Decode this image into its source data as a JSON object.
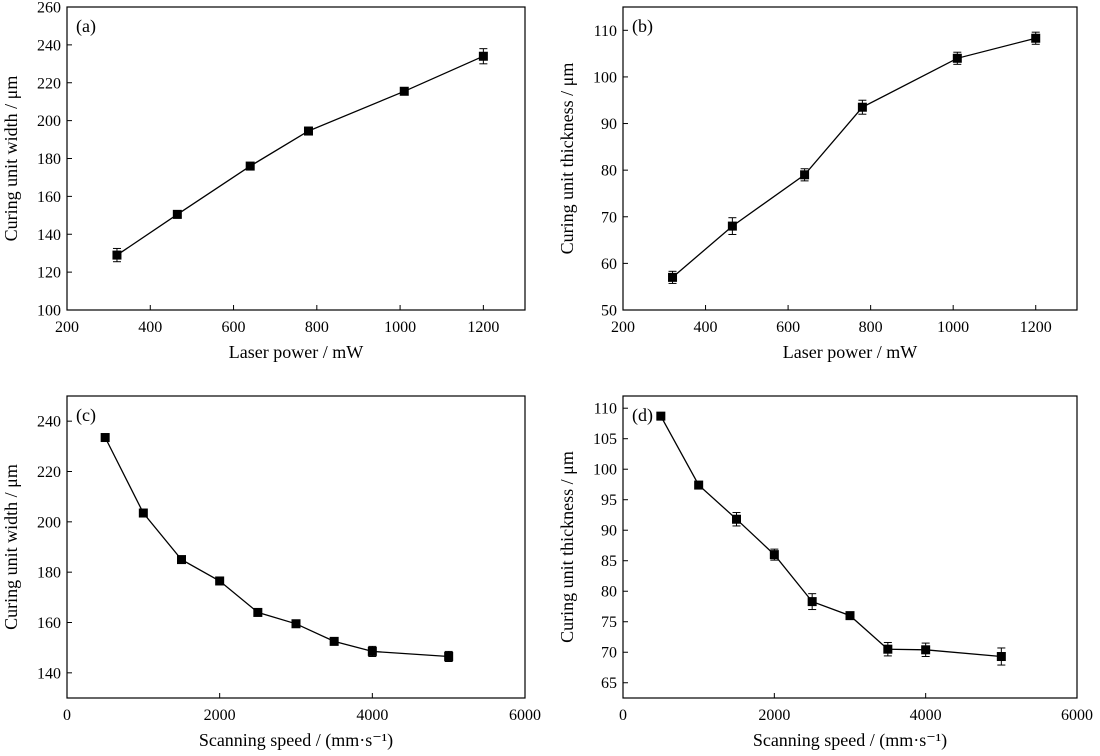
{
  "chart_data": [
    {
      "id": "a",
      "type": "line",
      "panel_label": "(a)",
      "xlabel": "Laser power / mW",
      "ylabel": "Curing unit width / μm",
      "xlim": [
        200,
        1300
      ],
      "ylim": [
        100,
        260
      ],
      "xticks": [
        200,
        400,
        600,
        800,
        1000,
        1200
      ],
      "yticks": [
        100,
        120,
        140,
        160,
        180,
        200,
        220,
        240,
        260
      ],
      "grid": false,
      "series": [
        {
          "x": [
            320,
            465,
            640,
            780,
            1010,
            1200
          ],
          "y": [
            129,
            150.5,
            176,
            194.5,
            215.5,
            234
          ],
          "err": [
            3.5,
            2,
            1.5,
            2,
            1.5,
            4
          ]
        }
      ]
    },
    {
      "id": "b",
      "type": "line",
      "panel_label": "(b)",
      "xlabel": "Laser power / mW",
      "ylabel": "Curing unit thickness / μm",
      "xlim": [
        200,
        1300
      ],
      "ylim": [
        50,
        115
      ],
      "xticks": [
        200,
        400,
        600,
        800,
        1000,
        1200
      ],
      "yticks": [
        50,
        60,
        70,
        80,
        90,
        100,
        110
      ],
      "grid": false,
      "series": [
        {
          "x": [
            320,
            465,
            640,
            780,
            1010,
            1200
          ],
          "y": [
            57,
            68,
            79,
            93.5,
            104,
            108.3
          ],
          "err": [
            1.3,
            1.8,
            1.3,
            1.5,
            1.3,
            1.3
          ]
        }
      ]
    },
    {
      "id": "c",
      "type": "line",
      "panel_label": "(c)",
      "xlabel": "Scanning speed / (mm·s⁻¹)",
      "ylabel": "Curing unit width / μm",
      "xlim": [
        0,
        6000
      ],
      "ylim": [
        130,
        250
      ],
      "xticks": [
        0,
        2000,
        4000,
        6000
      ],
      "yticks": [
        140,
        160,
        180,
        200,
        220,
        240
      ],
      "grid": false,
      "series": [
        {
          "x": [
            500,
            1000,
            1500,
            2000,
            2500,
            3000,
            3500,
            4000,
            5000
          ],
          "y": [
            233.5,
            203.5,
            185,
            176.5,
            164,
            159.5,
            152.5,
            148.5,
            146.5
          ],
          "err": [
            1,
            1,
            1,
            1,
            1,
            1,
            1,
            2,
            2
          ]
        }
      ]
    },
    {
      "id": "d",
      "type": "line",
      "panel_label": "(d)",
      "xlabel": "Scanning speed / (mm·s⁻¹)",
      "ylabel": "Curing unit thickness / μm",
      "xlim": [
        0,
        6000
      ],
      "ylim": [
        62.5,
        112
      ],
      "xticks": [
        0,
        2000,
        4000,
        6000
      ],
      "yticks": [
        65,
        70,
        75,
        80,
        85,
        90,
        95,
        100,
        105,
        110
      ],
      "grid": false,
      "series": [
        {
          "x": [
            500,
            1000,
            1500,
            2000,
            2500,
            3000,
            3500,
            4000,
            5000
          ],
          "y": [
            108.7,
            97.4,
            91.8,
            86,
            78.3,
            76,
            70.5,
            70.4,
            69.3
          ],
          "err": [
            0.5,
            0.5,
            1.1,
            0.9,
            1.3,
            0.5,
            1.1,
            1.1,
            1.4
          ]
        }
      ]
    }
  ]
}
